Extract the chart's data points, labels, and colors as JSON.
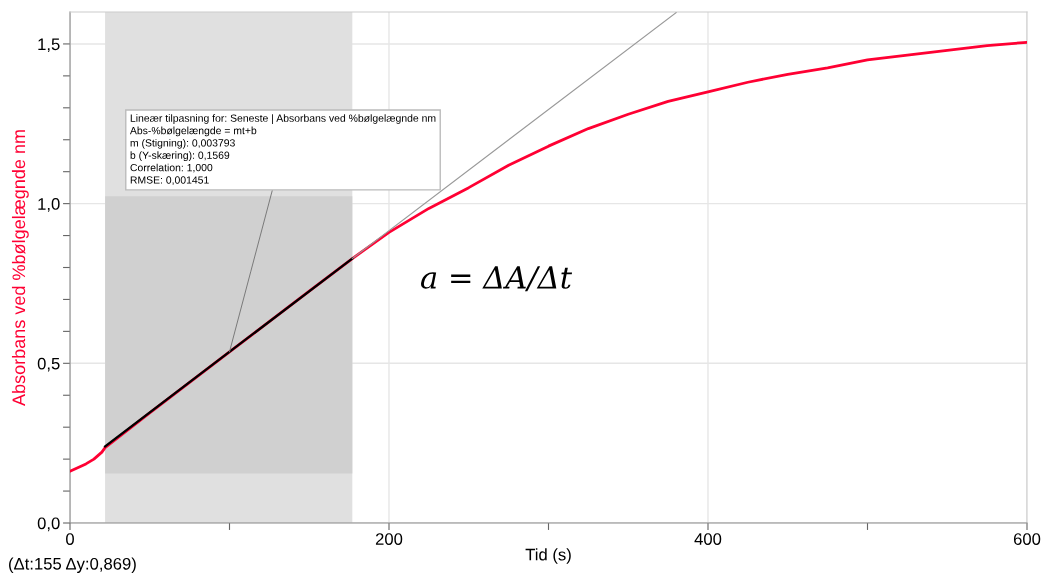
{
  "chart_data": {
    "type": "line",
    "xlabel": "Tid (s)",
    "ylabel": "Absorbans ved %bølgelægnde nm",
    "xlim": [
      0,
      600
    ],
    "ylim": [
      0,
      1.6
    ],
    "xticks": [
      0,
      {
        "value": 100,
        "label": null
      },
      200,
      {
        "value": 300,
        "label": null
      },
      400,
      {
        "value": 500,
        "label": null
      },
      600
    ],
    "yticks": [
      {
        "value": 0,
        "label": "0,0"
      },
      {
        "value": 0.1,
        "label": null
      },
      {
        "value": 0.2,
        "label": null
      },
      {
        "value": 0.3,
        "label": null
      },
      {
        "value": 0.4,
        "label": null
      },
      {
        "value": 0.5,
        "label": "0,5"
      },
      {
        "value": 0.6,
        "label": null
      },
      {
        "value": 0.7,
        "label": null
      },
      {
        "value": 0.8,
        "label": null
      },
      {
        "value": 0.9,
        "label": null
      },
      {
        "value": 1.0,
        "label": "1,0"
      },
      {
        "value": 1.1,
        "label": null
      },
      {
        "value": 1.2,
        "label": null
      },
      {
        "value": 1.3,
        "label": null
      },
      {
        "value": 1.4,
        "label": null
      },
      {
        "value": 1.5,
        "label": "1,5"
      }
    ],
    "grid": true,
    "marker": "none",
    "line_style": "solid",
    "bands": [
      {
        "axis": "x",
        "from": 22,
        "to": 177,
        "color": "#e0e0e0"
      },
      {
        "axis": "y",
        "from": 0.155,
        "to": 1.023,
        "color": "#d0d0d0"
      }
    ],
    "series": [
      {
        "color": "#ff0033",
        "x": [
          0,
          10,
          15,
          20,
          22,
          50,
          100,
          150,
          177,
          200,
          225,
          250,
          275,
          300,
          325,
          350,
          375,
          400,
          425,
          450,
          475,
          500,
          525,
          550,
          575,
          600
        ],
        "values": [
          0.162,
          0.185,
          0.2,
          0.222,
          0.236,
          0.345,
          0.536,
          0.726,
          0.828,
          0.91,
          0.985,
          1.05,
          1.12,
          1.18,
          1.235,
          1.28,
          1.32,
          1.35,
          1.38,
          1.405,
          1.425,
          1.45,
          1.465,
          1.48,
          1.495,
          1.505
        ]
      },
      {
        "color": "#000000",
        "x": [
          22,
          177
        ],
        "values": [
          0.24,
          0.828
        ]
      },
      {
        "color": "#999999",
        "x": [
          177,
          380
        ],
        "values": [
          0.828,
          1.598
        ]
      }
    ],
    "annotations": [
      {
        "text": "Lineær tilpasning for: Seneste | Absorbans ved %bølgelægnde nm\nAbs-%bølgelængde = mt+b\nm (Stigning): 0,003793\nb (Y-skæring): 0,1569\nCorrelation: 1,000\nRMSE: 0,001451",
        "x": 100,
        "y": 0.536
      },
      "(Δt:155 Δy:0,869)",
      "a = ΔA/Δt"
    ]
  }
}
